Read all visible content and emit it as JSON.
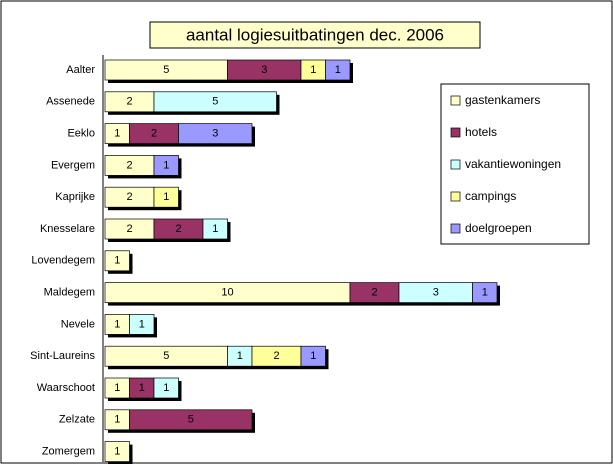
{
  "chart_data": {
    "type": "bar",
    "orientation": "horizontal",
    "stacked": true,
    "title": "aantal logiesuitbatingen dec. 2006",
    "categories": [
      "Aalter",
      "Assenede",
      "Eeklo",
      "Evergem",
      "Kaprijke",
      "Knesselare",
      "Lovendegem",
      "Maldegem",
      "Nevele",
      "Sint-Laureins",
      "Waarschoot",
      "Zelzate",
      "Zomergem"
    ],
    "series": [
      {
        "name": "gastenkamers",
        "color": "#ffffcc",
        "values": [
          5,
          2,
          1,
          2,
          2,
          2,
          1,
          10,
          1,
          5,
          1,
          1,
          1
        ]
      },
      {
        "name": "hotels",
        "color": "#993366",
        "values": [
          3,
          null,
          2,
          null,
          null,
          2,
          null,
          2,
          null,
          null,
          1,
          5,
          null
        ]
      },
      {
        "name": "vakantiewoningen",
        "color": "#ccffff",
        "values": [
          null,
          5,
          null,
          null,
          null,
          1,
          null,
          3,
          1,
          1,
          1,
          null,
          null
        ]
      },
      {
        "name": "campings",
        "color": "#ffff99",
        "values": [
          1,
          null,
          null,
          null,
          1,
          null,
          null,
          null,
          null,
          2,
          null,
          null,
          null
        ]
      },
      {
        "name": "doelgroepen",
        "color": "#9999ff",
        "values": [
          1,
          null,
          3,
          1,
          null,
          null,
          null,
          1,
          null,
          1,
          null,
          null,
          null
        ]
      }
    ],
    "legend": "right"
  }
}
